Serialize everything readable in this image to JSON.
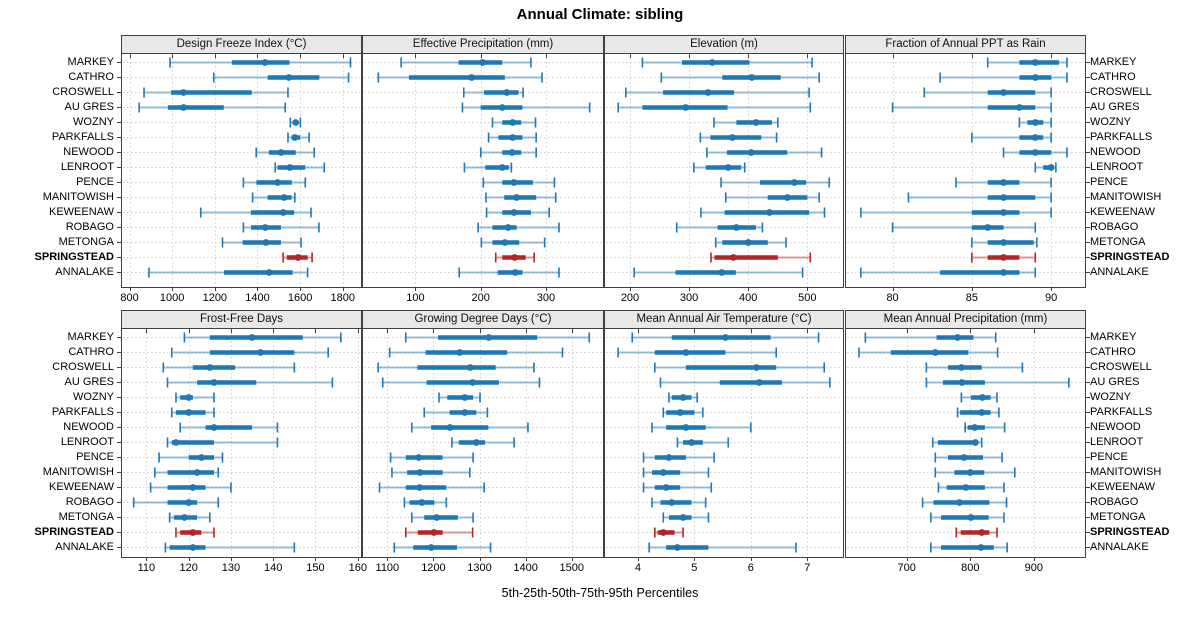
{
  "title": "Annual Climate: sibling",
  "caption": "5th-25th-50th-75th-95th Percentiles",
  "sites": [
    "MARKEY",
    "CATHRO",
    "CROSWELL",
    "AU GRES",
    "WOZNY",
    "PARKFALLS",
    "NEWOOD",
    "LENROOT",
    "PENCE",
    "MANITOWISH",
    "KEWEENAW",
    "ROBAGO",
    "METONGA",
    "SPRINGSTEAD",
    "ANNALAKE"
  ],
  "highlight_site": "SPRINGSTEAD",
  "colors": {
    "series": "#1f78b4",
    "highlight": "#b22626",
    "strip_bg": "#e8e8e8",
    "grid": "#cfcfcf",
    "frame": "#404040"
  },
  "chart_data": [
    {
      "type": "dot-whisker",
      "title": "Design Freeze Index (°C)",
      "row": 0,
      "col": 0,
      "xlim": [
        760,
        1890
      ],
      "ticks": [
        800,
        1000,
        1200,
        1400,
        1600,
        1800
      ],
      "percentile_labels": [
        "5th",
        "25th",
        "50th",
        "75th",
        "95th"
      ],
      "values": [
        [
          990,
          1280,
          1435,
          1550,
          1836
        ],
        [
          1195,
          1448,
          1547,
          1690,
          1827
        ],
        [
          868,
          995,
          1053,
          1373,
          1543
        ],
        [
          845,
          980,
          1053,
          1242,
          1530
        ],
        [
          1554,
          1568,
          1579,
          1590,
          1601
        ],
        [
          1543,
          1560,
          1575,
          1600,
          1642
        ],
        [
          1394,
          1453,
          1511,
          1579,
          1666
        ],
        [
          1483,
          1494,
          1552,
          1624,
          1713
        ],
        [
          1334,
          1395,
          1494,
          1561,
          1624
        ],
        [
          1377,
          1447,
          1525,
          1560,
          1575
        ],
        [
          1134,
          1369,
          1521,
          1572,
          1651
        ],
        [
          1334,
          1370,
          1436,
          1510,
          1688
        ],
        [
          1236,
          1330,
          1440,
          1510,
          1604
        ],
        [
          1520,
          1537,
          1590,
          1635,
          1656
        ],
        [
          891,
          1243,
          1455,
          1565,
          1635
        ]
      ]
    },
    {
      "type": "dot-whisker",
      "title": "Effective Precipitation (mm)",
      "row": 0,
      "col": 1,
      "xlim": [
        18,
        389
      ],
      "ticks": [
        100,
        200,
        300
      ],
      "percentile_labels": [
        "5th",
        "25th",
        "50th",
        "75th",
        "95th"
      ],
      "values": [
        [
          78,
          166,
          203,
          233,
          277
        ],
        [
          43,
          90,
          186,
          237,
          294
        ],
        [
          174,
          205,
          240,
          258,
          265
        ],
        [
          172,
          200,
          233,
          264,
          367
        ],
        [
          218,
          233,
          249,
          262,
          284
        ],
        [
          212,
          227,
          249,
          264,
          285
        ],
        [
          200,
          233,
          248,
          262,
          285
        ],
        [
          175,
          207,
          233,
          243,
          247
        ],
        [
          204,
          233,
          251,
          280,
          313
        ],
        [
          208,
          236,
          255,
          285,
          315
        ],
        [
          209,
          233,
          251,
          277,
          305
        ],
        [
          196,
          218,
          242,
          255,
          320
        ],
        [
          201,
          218,
          237,
          259,
          298
        ],
        [
          223,
          233,
          252,
          269,
          282
        ],
        [
          167,
          226,
          253,
          264,
          320
        ]
      ]
    },
    {
      "type": "dot-whisker",
      "title": "Elevation (m)",
      "row": 0,
      "col": 2,
      "xlim": [
        156,
        562
      ],
      "ticks": [
        200,
        300,
        400,
        500
      ],
      "percentile_labels": [
        "5th",
        "25th",
        "50th",
        "75th",
        "95th"
      ],
      "values": [
        [
          221,
          288,
          339,
          402,
          508
        ],
        [
          253,
          356,
          406,
          455,
          520
        ],
        [
          193,
          256,
          332,
          376,
          503
        ],
        [
          180,
          221,
          294,
          365,
          505
        ],
        [
          342,
          380,
          413,
          440,
          450
        ],
        [
          319,
          336,
          373,
          422,
          448
        ],
        [
          330,
          364,
          405,
          466,
          524
        ],
        [
          308,
          328,
          366,
          388,
          394
        ],
        [
          354,
          420,
          478,
          498,
          537
        ],
        [
          362,
          433,
          466,
          500,
          520
        ],
        [
          320,
          360,
          436,
          503,
          529
        ],
        [
          279,
          348,
          380,
          413,
          424
        ],
        [
          345,
          356,
          400,
          433,
          464
        ],
        [
          337,
          343,
          375,
          450,
          505
        ],
        [
          207,
          277,
          355,
          379,
          492
        ]
      ]
    },
    {
      "type": "dot-whisker",
      "title": "Fraction of Annual PPT as Rain",
      "row": 0,
      "col": 3,
      "xlim": [
        77,
        92.2
      ],
      "ticks": [
        80,
        85,
        90
      ],
      "percentile_labels": [
        "5th",
        "25th",
        "50th",
        "75th",
        "95th"
      ],
      "values": [
        [
          86,
          88,
          89,
          90.5,
          91
        ],
        [
          83,
          88,
          89,
          90,
          91
        ],
        [
          82,
          86,
          87,
          89,
          90
        ],
        [
          80,
          86,
          88,
          89,
          90
        ],
        [
          88,
          88.5,
          89,
          89.5,
          90
        ],
        [
          85,
          88,
          89,
          89.5,
          90
        ],
        [
          87,
          88,
          89,
          90,
          91
        ],
        [
          89,
          89.5,
          90,
          90.1,
          90.3
        ],
        [
          84,
          86,
          87,
          88,
          90
        ],
        [
          81,
          86,
          87,
          89,
          90
        ],
        [
          78,
          85,
          87,
          88,
          90
        ],
        [
          80,
          85,
          86,
          87,
          89
        ],
        [
          85,
          86,
          87,
          88.9,
          89.1
        ],
        [
          85,
          86,
          87,
          88,
          89
        ],
        [
          78,
          83,
          87,
          88,
          89
        ]
      ]
    },
    {
      "type": "dot-whisker",
      "title": "Frost-Free Days",
      "row": 1,
      "col": 0,
      "xlim": [
        104,
        161
      ],
      "ticks": [
        110,
        120,
        130,
        140,
        150,
        160
      ],
      "percentile_labels": [
        "5th",
        "25th",
        "50th",
        "75th",
        "95th"
      ],
      "values": [
        [
          119,
          125,
          135,
          147,
          156
        ],
        [
          116,
          125,
          137,
          145,
          153
        ],
        [
          114,
          121,
          125,
          131,
          145
        ],
        [
          115,
          122,
          126,
          136,
          154
        ],
        [
          117,
          118,
          120,
          121,
          126
        ],
        [
          116,
          117,
          120,
          124,
          126
        ],
        [
          118,
          124,
          126,
          135,
          141
        ],
        [
          115,
          116,
          117,
          126,
          141
        ],
        [
          113,
          120,
          123,
          126,
          128
        ],
        [
          112,
          115,
          122,
          126,
          127
        ],
        [
          111,
          115,
          121,
          124,
          130
        ],
        [
          107,
          115,
          120,
          122,
          127
        ],
        [
          115.5,
          116.5,
          119,
          122,
          125
        ],
        [
          117,
          118,
          121,
          123,
          126
        ],
        [
          114.5,
          115.5,
          121,
          124,
          145
        ]
      ]
    },
    {
      "type": "dot-whisker",
      "title": "Growing Degree Days (°C)",
      "row": 1,
      "col": 1,
      "xlim": [
        1045,
        1570
      ],
      "ticks": [
        1100,
        1200,
        1300,
        1400,
        1500
      ],
      "percentile_labels": [
        "5th",
        "25th",
        "50th",
        "75th",
        "95th"
      ],
      "values": [
        [
          1140,
          1210,
          1320,
          1425,
          1538
        ],
        [
          1105,
          1183,
          1257,
          1360,
          1480
        ],
        [
          1080,
          1165,
          1280,
          1335,
          1418
        ],
        [
          1090,
          1185,
          1285,
          1342,
          1430
        ],
        [
          1212,
          1230,
          1268,
          1286,
          1301
        ],
        [
          1180,
          1235,
          1268,
          1293,
          1317
        ],
        [
          1153,
          1195,
          1236,
          1319,
          1405
        ],
        [
          1240,
          1255,
          1293,
          1312,
          1375
        ],
        [
          1107,
          1140,
          1168,
          1220,
          1286
        ],
        [
          1110,
          1143,
          1171,
          1220,
          1279
        ],
        [
          1083,
          1140,
          1170,
          1228,
          1310
        ],
        [
          1137,
          1148,
          1175,
          1202,
          1228
        ],
        [
          1153,
          1180,
          1207,
          1253,
          1286
        ],
        [
          1140,
          1166,
          1201,
          1220,
          1285
        ],
        [
          1115,
          1156,
          1195,
          1251,
          1324
        ]
      ]
    },
    {
      "type": "dot-whisker",
      "title": "Mean Annual Air Temperature (°C)",
      "row": 1,
      "col": 2,
      "xlim": [
        3.4,
        7.65
      ],
      "ticks": [
        4,
        5,
        6,
        7
      ],
      "percentile_labels": [
        "5th",
        "25th",
        "50th",
        "75th",
        "95th"
      ],
      "values": [
        [
          3.9,
          4.6,
          5.55,
          6.35,
          7.2
        ],
        [
          3.65,
          4.3,
          4.85,
          5.55,
          6.45
        ],
        [
          4.3,
          4.85,
          6.1,
          6.45,
          7.3
        ],
        [
          4.4,
          5.45,
          6.15,
          6.55,
          7.4
        ],
        [
          4.55,
          4.6,
          4.8,
          4.95,
          5.05
        ],
        [
          4.45,
          4.5,
          4.75,
          5.0,
          5.15
        ],
        [
          4.25,
          4.5,
          4.85,
          5.2,
          6.0
        ],
        [
          4.7,
          4.8,
          4.95,
          5.15,
          5.6
        ],
        [
          4.1,
          4.3,
          4.55,
          4.85,
          5.35
        ],
        [
          4.1,
          4.25,
          4.45,
          4.75,
          5.25
        ],
        [
          4.1,
          4.3,
          4.5,
          4.75,
          5.3
        ],
        [
          4.25,
          4.4,
          4.6,
          4.95,
          5.2
        ],
        [
          4.45,
          4.55,
          4.8,
          4.95,
          5.25
        ],
        [
          4.3,
          4.35,
          4.45,
          4.65,
          4.8
        ],
        [
          4.2,
          4.5,
          4.7,
          5.25,
          6.8
        ]
      ]
    },
    {
      "type": "dot-whisker",
      "title": "Mean Annual Precipitation (mm)",
      "row": 1,
      "col": 3,
      "xlim": [
        603,
        982
      ],
      "ticks": [
        700,
        800,
        900
      ],
      "percentile_labels": [
        "5th",
        "25th",
        "50th",
        "75th",
        "95th"
      ],
      "values": [
        [
          635,
          747,
          780,
          805,
          840
        ],
        [
          625,
          675,
          745,
          797,
          843
        ],
        [
          731,
          765,
          786,
          818,
          882
        ],
        [
          731,
          757,
          787,
          823,
          955
        ],
        [
          786,
          801,
          819,
          832,
          842
        ],
        [
          780,
          784,
          818,
          832,
          845
        ],
        [
          792,
          796,
          807,
          823,
          854
        ],
        [
          741,
          749,
          808,
          812,
          818
        ],
        [
          745,
          765,
          790,
          820,
          850
        ],
        [
          745,
          775,
          800,
          822,
          870
        ],
        [
          750,
          763,
          793,
          823,
          853
        ],
        [
          725,
          742,
          783,
          830,
          857
        ],
        [
          738,
          754,
          801,
          829,
          853
        ],
        [
          778,
          785,
          818,
          830,
          842
        ],
        [
          738,
          754,
          817,
          837,
          858
        ]
      ]
    }
  ]
}
